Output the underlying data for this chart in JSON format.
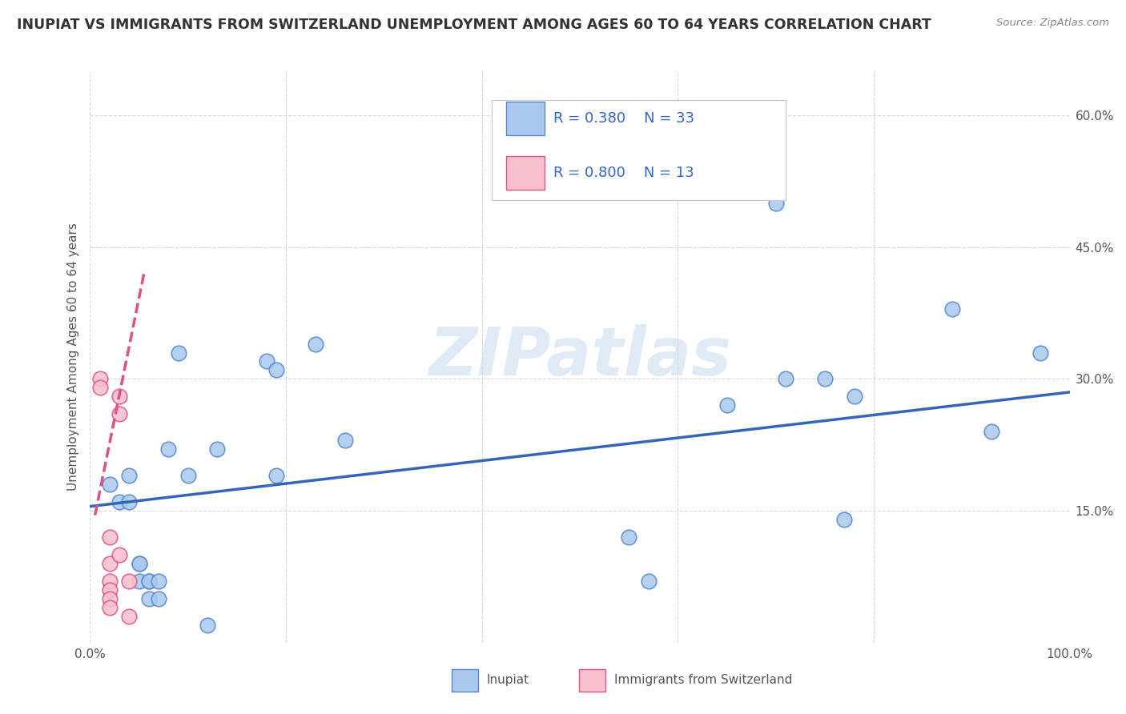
{
  "title": "INUPIAT VS IMMIGRANTS FROM SWITZERLAND UNEMPLOYMENT AMONG AGES 60 TO 64 YEARS CORRELATION CHART",
  "source_text": "Source: ZipAtlas.com",
  "ylabel": "Unemployment Among Ages 60 to 64 years",
  "xlim": [
    0,
    1.0
  ],
  "ylim": [
    0,
    0.65
  ],
  "x_ticks": [
    0.0,
    0.2,
    0.4,
    0.6,
    0.8,
    1.0
  ],
  "x_tick_labels": [
    "0.0%",
    "",
    "",
    "",
    "",
    "100.0%"
  ],
  "y_ticks": [
    0.0,
    0.15,
    0.3,
    0.45,
    0.6
  ],
  "y_tick_labels": [
    "",
    "15.0%",
    "30.0%",
    "45.0%",
    "60.0%"
  ],
  "background_color": "#ffffff",
  "grid_color": "#d8d8d8",
  "inupiat_x": [
    0.02,
    0.03,
    0.04,
    0.04,
    0.05,
    0.05,
    0.05,
    0.06,
    0.06,
    0.06,
    0.07,
    0.07,
    0.08,
    0.09,
    0.1,
    0.12,
    0.13,
    0.18,
    0.19,
    0.19,
    0.23,
    0.26,
    0.55,
    0.57,
    0.65,
    0.7,
    0.71,
    0.75,
    0.77,
    0.78,
    0.88,
    0.92,
    0.97
  ],
  "inupiat_y": [
    0.18,
    0.16,
    0.16,
    0.19,
    0.07,
    0.09,
    0.09,
    0.07,
    0.07,
    0.05,
    0.05,
    0.07,
    0.22,
    0.33,
    0.19,
    0.02,
    0.22,
    0.32,
    0.31,
    0.19,
    0.34,
    0.23,
    0.12,
    0.07,
    0.27,
    0.5,
    0.3,
    0.3,
    0.14,
    0.28,
    0.38,
    0.24,
    0.33
  ],
  "inupiat_color": "#aac8ee",
  "inupiat_edge_color": "#5588cc",
  "swiss_x": [
    0.01,
    0.01,
    0.02,
    0.02,
    0.02,
    0.02,
    0.02,
    0.02,
    0.03,
    0.03,
    0.03,
    0.04,
    0.04
  ],
  "swiss_y": [
    0.3,
    0.29,
    0.12,
    0.09,
    0.07,
    0.06,
    0.05,
    0.04,
    0.28,
    0.26,
    0.1,
    0.07,
    0.03
  ],
  "swiss_color": "#f8c0cc",
  "swiss_edge_color": "#e0508a",
  "inupiat_R": 0.38,
  "inupiat_N": 33,
  "swiss_R": 0.8,
  "swiss_N": 13,
  "trend_blue_x0": 0.0,
  "trend_blue_y0": 0.155,
  "trend_blue_x1": 1.0,
  "trend_blue_y1": 0.285,
  "trend_pink_x0": 0.005,
  "trend_pink_y0": 0.145,
  "trend_pink_x1": 0.055,
  "trend_pink_y1": 0.42,
  "legend_inupiat": "Inupiat",
  "legend_swiss": "Immigrants from Switzerland",
  "title_color": "#333333",
  "title_fontsize": 12.5,
  "axis_label_color": "#555555",
  "tick_color": "#555555",
  "legend_rn_color": "#3366cc",
  "source_color": "#888888",
  "watermark_color": "#ccddf0"
}
